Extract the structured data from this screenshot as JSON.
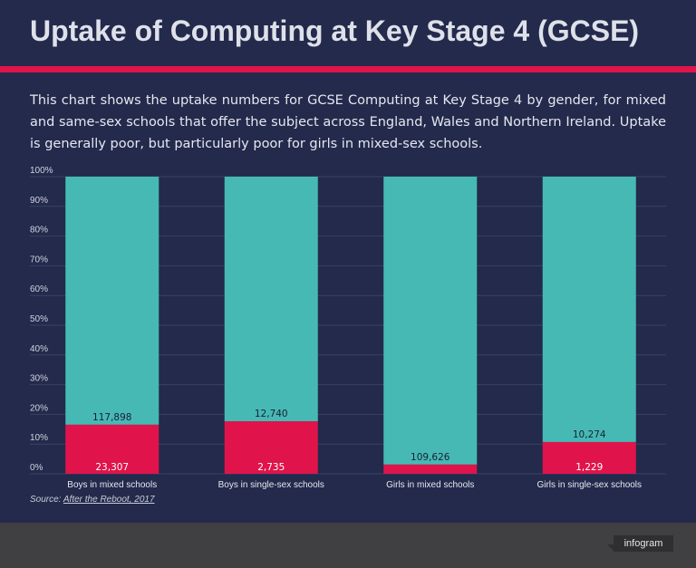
{
  "title": "Uptake of Computing at Key Stage 4 (GCSE)",
  "description": "This chart shows the uptake numbers for GCSE Computing at Key Stage 4 by gender, for mixed and same-sex schools that offer the subject across England, Wales and Northern Ireland. Uptake is generally poor, but particularly poor for girls in mixed-sex schools.",
  "source": {
    "prefix": "Source: ",
    "link": "After the Reboot, 2017"
  },
  "footer": {
    "badge": "infogram"
  },
  "colors": {
    "background": "#232a4c",
    "taken": "#e0144a",
    "not_taken": "#46b9b5",
    "accent": "#e0144a"
  },
  "chart_data": {
    "type": "bar",
    "stacked": true,
    "normalized": true,
    "ylim": [
      0,
      100
    ],
    "y_ticks": [
      "0%",
      "10%",
      "20%",
      "30%",
      "40%",
      "50%",
      "60%",
      "70%",
      "80%",
      "90%",
      "100%"
    ],
    "categories": [
      "Boys in mixed schools",
      "Boys in single-sex schools",
      "Girls in mixed schools",
      "Girls in single-sex schools"
    ],
    "series": [
      {
        "values": [
          23307,
          2735,
          3500,
          1229
        ],
        "labels": [
          "23,307",
          "2,735",
          "",
          "1,229"
        ],
        "color": "#e0144a"
      },
      {
        "values": [
          117898,
          12740,
          109626,
          10274
        ],
        "labels": [
          "117,898",
          "12,740",
          "109,626",
          "10,274"
        ],
        "color": "#46b9b5"
      }
    ],
    "grid": true,
    "legend": "none"
  }
}
